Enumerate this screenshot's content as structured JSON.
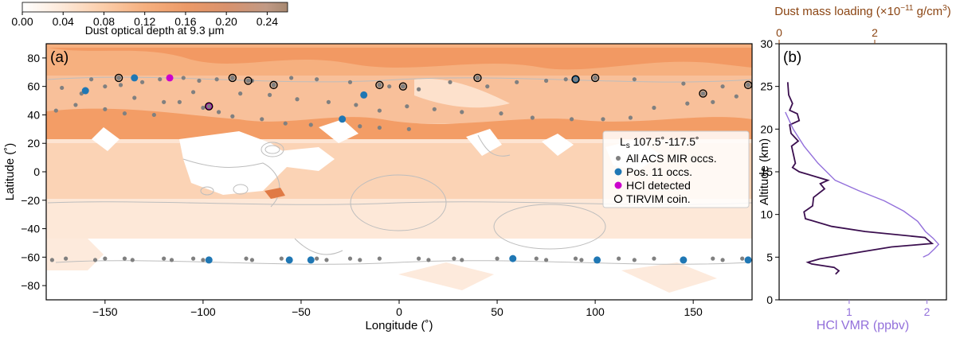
{
  "colorbar": {
    "label": "Dust optical depth at 9.3 μm",
    "ticks": [
      "0.00",
      "0.04",
      "0.08",
      "0.12",
      "0.16",
      "0.20",
      "0.24"
    ],
    "tick_values": [
      0,
      0.04,
      0.08,
      0.12,
      0.16,
      0.2,
      0.24
    ],
    "range": [
      0,
      0.26
    ],
    "colors": [
      "#ffffff",
      "#fde9d9",
      "#fbceab",
      "#f6b07f",
      "#ec9a68",
      "#d9926d",
      "#c19a85",
      "#a78870"
    ]
  },
  "colors": {
    "all_occ": "#808080",
    "pos11": "#1f77b4",
    "hcl": "#cc00cc",
    "profile_dark": "#3b0f4f",
    "profile_light": "#9370db",
    "top_axis": "#8b4513",
    "hcl_axis": "#9370db",
    "contour": "#bdbdbd"
  },
  "chart_data": [
    {
      "type": "scatter",
      "panel_label": "(a)",
      "xlabel": "Longitude (˚)",
      "ylabel": "Latitude (˚)",
      "xlim": [
        -180,
        180
      ],
      "ylim": [
        -90,
        90
      ],
      "xticks": [
        -150,
        -100,
        -50,
        0,
        50,
        100,
        150
      ],
      "yticks": [
        80,
        60,
        40,
        20,
        0,
        -20,
        -40,
        -60,
        -80
      ],
      "background": "dust optical depth field (filled contours)",
      "legend": {
        "title": "Ls 107.5˚-117.5˚",
        "placement": "middle-right",
        "entries": [
          "All ACS MIR occs.",
          "Pos. 11 occs.",
          "HCl detected",
          "TIRVIM coin."
        ]
      },
      "series": [
        {
          "name": "All ACS MIR occs.",
          "points": [
            [
              -172,
              59
            ],
            [
              -157,
              65
            ],
            [
              -150,
              60
            ],
            [
              -142,
              61
            ],
            [
              -131,
              63
            ],
            [
              -122,
              65
            ],
            [
              -110,
              66
            ],
            [
              -102,
              64
            ],
            [
              -93,
              65
            ],
            [
              -75,
              64
            ],
            [
              -55,
              66
            ],
            [
              -42,
              65
            ],
            [
              -25,
              63
            ],
            [
              -5,
              60
            ],
            [
              10,
              58
            ],
            [
              26,
              63
            ],
            [
              45,
              60
            ],
            [
              60,
              63
            ],
            [
              75,
              64
            ],
            [
              85,
              65
            ],
            [
              120,
              65
            ],
            [
              145,
              62
            ],
            [
              165,
              60
            ],
            [
              -175,
              43
            ],
            [
              -165,
              47
            ],
            [
              -150,
              44
            ],
            [
              -140,
              41
            ],
            [
              -125,
              40
            ],
            [
              -112,
              49
            ],
            [
              -100,
              45
            ],
            [
              -92,
              42
            ],
            [
              -85,
              39
            ],
            [
              -70,
              37
            ],
            [
              -58,
              34
            ],
            [
              -45,
              33
            ],
            [
              -20,
              32
            ],
            [
              -10,
              31
            ],
            [
              5,
              30
            ],
            [
              -162,
              55
            ],
            [
              -135,
              52
            ],
            [
              -120,
              49
            ],
            [
              -105,
              56
            ],
            [
              -81,
              55
            ],
            [
              -66,
              54
            ],
            [
              -52,
              51
            ],
            [
              -36,
              49
            ],
            [
              -22,
              47
            ],
            [
              -10,
              43
            ],
            [
              4,
              46
            ],
            [
              18,
              44
            ],
            [
              32,
              42
            ],
            [
              52,
              41
            ],
            [
              68,
              38
            ],
            [
              88,
              37
            ],
            [
              104,
              37
            ],
            [
              118,
              38
            ],
            [
              130,
              45
            ],
            [
              147,
              48
            ],
            [
              160,
              49
            ],
            [
              172,
              53
            ],
            [
              -177,
              -62
            ],
            [
              -170,
              -61
            ],
            [
              -155,
              -62
            ],
            [
              -150,
              -61
            ],
            [
              -140,
              -61
            ],
            [
              -136,
              -62
            ],
            [
              -120,
              -61
            ],
            [
              -116,
              -62
            ],
            [
              -105,
              -61
            ],
            [
              -100,
              -62
            ],
            [
              -78,
              -61
            ],
            [
              -75,
              -62
            ],
            [
              -60,
              -61
            ],
            [
              -56,
              -62
            ],
            [
              -42,
              -61
            ],
            [
              -37,
              -62
            ],
            [
              -25,
              -61
            ],
            [
              -20,
              -62
            ],
            [
              -10,
              -61
            ],
            [
              10,
              -61
            ],
            [
              15,
              -62
            ],
            [
              28,
              -61
            ],
            [
              32,
              -62
            ],
            [
              50,
              -61
            ],
            [
              70,
              -61
            ],
            [
              75,
              -62
            ],
            [
              90,
              -61
            ],
            [
              93,
              -62
            ],
            [
              112,
              -61
            ],
            [
              120,
              -62
            ],
            [
              130,
              -61
            ],
            [
              160,
              -61
            ],
            [
              165,
              -62
            ],
            [
              175,
              -61
            ]
          ]
        },
        {
          "name": "Pos. 11 occs.",
          "points": [
            [
              -160,
              57
            ],
            [
              -135,
              66
            ],
            [
              -18,
              54
            ],
            [
              -29,
              37
            ],
            [
              90,
              65
            ],
            [
              -97,
              -62
            ],
            [
              -56,
              -62
            ],
            [
              -45,
              -62
            ],
            [
              58,
              -61
            ],
            [
              101,
              -62
            ],
            [
              145,
              -62
            ],
            [
              178,
              -62
            ]
          ]
        },
        {
          "name": "HCl detected",
          "points": [
            [
              -117,
              66
            ],
            [
              -97,
              46
            ]
          ]
        },
        {
          "name": "TIRVIM coin.",
          "points": [
            [
              -143,
              66
            ],
            [
              -85,
              66
            ],
            [
              -77,
              64
            ],
            [
              -64,
              61
            ],
            [
              -10,
              61
            ],
            [
              2,
              60
            ],
            [
              40,
              66
            ],
            [
              90,
              65
            ],
            [
              100,
              66
            ],
            [
              155,
              55
            ],
            [
              178,
              61
            ],
            [
              -97,
              46
            ]
          ]
        }
      ]
    },
    {
      "type": "line",
      "panel_label": "(b)",
      "ylabel": "Altitude (km)",
      "xlabel": "HCl VMR (ppbv)",
      "xlabel_top": "Dust mass loading (×10⁻¹¹ g/cm³)",
      "ylim": [
        0,
        30
      ],
      "yticks": [
        0,
        5,
        10,
        15,
        20,
        25,
        30
      ],
      "xlim_bottom": [
        0.1,
        2.25
      ],
      "xticks_bottom": [
        1,
        2
      ],
      "xlim_top": [
        0,
        3.5
      ],
      "xticks_top": [
        0,
        2
      ],
      "series": [
        {
          "name": "Dust mass loading",
          "axis": "top",
          "points": [
            [
              0.18,
              25.5
            ],
            [
              0.2,
              24
            ],
            [
              0.28,
              23
            ],
            [
              0.22,
              22.2
            ],
            [
              0.38,
              21.8
            ],
            [
              0.42,
              21
            ],
            [
              0.22,
              20.5
            ],
            [
              0.25,
              19.5
            ],
            [
              0.4,
              18.6
            ],
            [
              0.26,
              18
            ],
            [
              0.3,
              17
            ],
            [
              0.34,
              16
            ],
            [
              0.28,
              15.5
            ],
            [
              0.42,
              15
            ],
            [
              1.02,
              14
            ],
            [
              0.86,
              13.6
            ],
            [
              0.95,
              13
            ],
            [
              0.72,
              12
            ],
            [
              0.7,
              11
            ],
            [
              0.52,
              10.3
            ],
            [
              0.55,
              9.5
            ],
            [
              1.1,
              8.6
            ],
            [
              1.8,
              8
            ],
            [
              3.05,
              7.3
            ],
            [
              3.2,
              6.6
            ],
            [
              2.35,
              6.2
            ],
            [
              1.7,
              5.6
            ],
            [
              0.85,
              4.8
            ],
            [
              0.6,
              4.4
            ],
            [
              0.68,
              4.2
            ],
            [
              1.15,
              3.8
            ],
            [
              1.25,
              3.4
            ],
            [
              1.18,
              3.0
            ]
          ]
        },
        {
          "name": "HCl VMR",
          "axis": "bottom",
          "points": [
            [
              0.18,
              22
            ],
            [
              0.28,
              20
            ],
            [
              0.42,
              18
            ],
            [
              0.6,
              16
            ],
            [
              0.82,
              14
            ],
            [
              1.12,
              12.8
            ],
            [
              1.45,
              11.6
            ],
            [
              1.7,
              10.4
            ],
            [
              1.88,
              9.2
            ],
            [
              1.98,
              8
            ],
            [
              2.08,
              7.2
            ],
            [
              2.15,
              6.5
            ],
            [
              2.1,
              6
            ],
            [
              2.02,
              5.3
            ],
            [
              1.95,
              5
            ]
          ]
        }
      ]
    }
  ]
}
